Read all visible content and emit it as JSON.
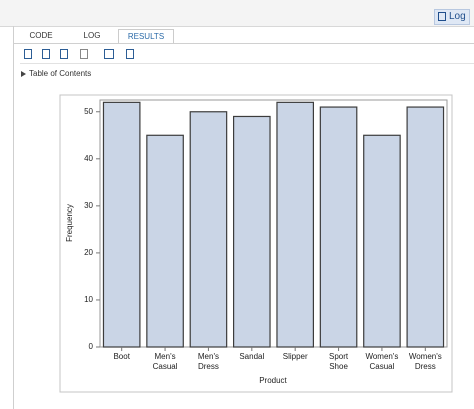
{
  "ui": {
    "log_button": "Log",
    "tabs": [
      "CODE",
      "LOG",
      "RESULTS"
    ],
    "toc": "Table of Contents"
  },
  "chart_data": {
    "type": "bar",
    "x_label": "Product",
    "y_label": "Frequency",
    "categories": [
      "Boot",
      "Men's Casual",
      "Men's Dress",
      "Sandal",
      "Slipper",
      "Sport Shoe",
      "Women's Casual",
      "Women's Dress"
    ],
    "values": [
      52,
      45,
      50,
      49,
      52,
      51,
      45,
      51
    ],
    "color": "#cad5e6",
    "ylim": [
      0,
      52.5
    ],
    "yticks": [
      0,
      10,
      20,
      30,
      40,
      50
    ],
    "grid": false
  }
}
